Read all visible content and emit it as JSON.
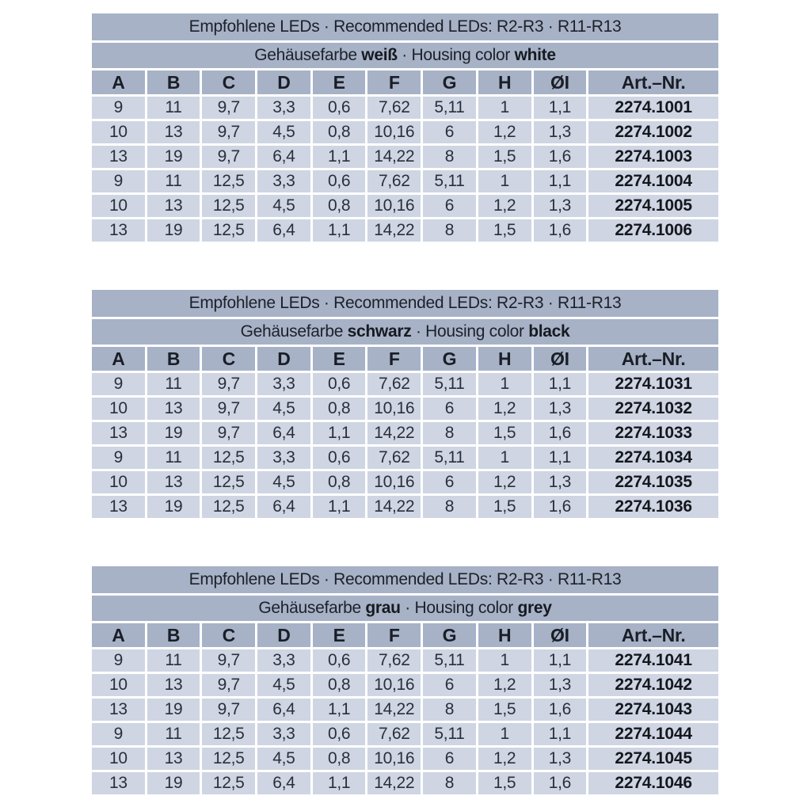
{
  "page": {
    "background": "#ffffff"
  },
  "colors": {
    "band": "#a7b2c7",
    "row": "#cfd5e2",
    "text": "#232832"
  },
  "tables": [
    {
      "title": "Empfohlene LEDs · Recommended LEDs: R2-R3 · R11-R13",
      "subtitle": {
        "prefix": "Gehäusefarbe ",
        "color_de": "weiß",
        "mid": " · Housing color ",
        "color_en": "white"
      },
      "columns": [
        "A",
        "B",
        "C",
        "D",
        "E",
        "F",
        "G",
        "H",
        "ØI",
        "Art.–Nr."
      ],
      "rows": [
        [
          "9",
          "11",
          "9,7",
          "3,3",
          "0,6",
          "7,62",
          "5,11",
          "1",
          "1,1",
          "2274.1001"
        ],
        [
          "10",
          "13",
          "9,7",
          "4,5",
          "0,8",
          "10,16",
          "6",
          "1,2",
          "1,3",
          "2274.1002"
        ],
        [
          "13",
          "19",
          "9,7",
          "6,4",
          "1,1",
          "14,22",
          "8",
          "1,5",
          "1,6",
          "2274.1003"
        ],
        [
          "9",
          "11",
          "12,5",
          "3,3",
          "0,6",
          "7,62",
          "5,11",
          "1",
          "1,1",
          "2274.1004"
        ],
        [
          "10",
          "13",
          "12,5",
          "4,5",
          "0,8",
          "10,16",
          "6",
          "1,2",
          "1,3",
          "2274.1005"
        ],
        [
          "13",
          "19",
          "12,5",
          "6,4",
          "1,1",
          "14,22",
          "8",
          "1,5",
          "1,6",
          "2274.1006"
        ]
      ]
    },
    {
      "title": "Empfohlene LEDs · Recommended LEDs: R2-R3 · R11-R13",
      "subtitle": {
        "prefix": "Gehäusefarbe ",
        "color_de": "schwarz",
        "mid": " · Housing color ",
        "color_en": "black"
      },
      "columns": [
        "A",
        "B",
        "C",
        "D",
        "E",
        "F",
        "G",
        "H",
        "ØI",
        "Art.–Nr."
      ],
      "rows": [
        [
          "9",
          "11",
          "9,7",
          "3,3",
          "0,6",
          "7,62",
          "5,11",
          "1",
          "1,1",
          "2274.1031"
        ],
        [
          "10",
          "13",
          "9,7",
          "4,5",
          "0,8",
          "10,16",
          "6",
          "1,2",
          "1,3",
          "2274.1032"
        ],
        [
          "13",
          "19",
          "9,7",
          "6,4",
          "1,1",
          "14,22",
          "8",
          "1,5",
          "1,6",
          "2274.1033"
        ],
        [
          "9",
          "11",
          "12,5",
          "3,3",
          "0,6",
          "7,62",
          "5,11",
          "1",
          "1,1",
          "2274.1034"
        ],
        [
          "10",
          "13",
          "12,5",
          "4,5",
          "0,8",
          "10,16",
          "6",
          "1,2",
          "1,3",
          "2274.1035"
        ],
        [
          "13",
          "19",
          "12,5",
          "6,4",
          "1,1",
          "14,22",
          "8",
          "1,5",
          "1,6",
          "2274.1036"
        ]
      ]
    },
    {
      "title": "Empfohlene LEDs · Recommended LEDs: R2-R3 · R11-R13",
      "subtitle": {
        "prefix": "Gehäusefarbe ",
        "color_de": "grau",
        "mid": " · Housing color ",
        "color_en": "grey"
      },
      "columns": [
        "A",
        "B",
        "C",
        "D",
        "E",
        "F",
        "G",
        "H",
        "ØI",
        "Art.–Nr."
      ],
      "rows": [
        [
          "9",
          "11",
          "9,7",
          "3,3",
          "0,6",
          "7,62",
          "5,11",
          "1",
          "1,1",
          "2274.1041"
        ],
        [
          "10",
          "13",
          "9,7",
          "4,5",
          "0,8",
          "10,16",
          "6",
          "1,2",
          "1,3",
          "2274.1042"
        ],
        [
          "13",
          "19",
          "9,7",
          "6,4",
          "1,1",
          "14,22",
          "8",
          "1,5",
          "1,6",
          "2274.1043"
        ],
        [
          "9",
          "11",
          "12,5",
          "3,3",
          "0,6",
          "7,62",
          "5,11",
          "1",
          "1,1",
          "2274.1044"
        ],
        [
          "10",
          "13",
          "12,5",
          "4,5",
          "0,8",
          "10,16",
          "6",
          "1,2",
          "1,3",
          "2274.1045"
        ],
        [
          "13",
          "19",
          "12,5",
          "6,4",
          "1,1",
          "14,22",
          "8",
          "1,5",
          "1,6",
          "2274.1046"
        ]
      ]
    }
  ]
}
